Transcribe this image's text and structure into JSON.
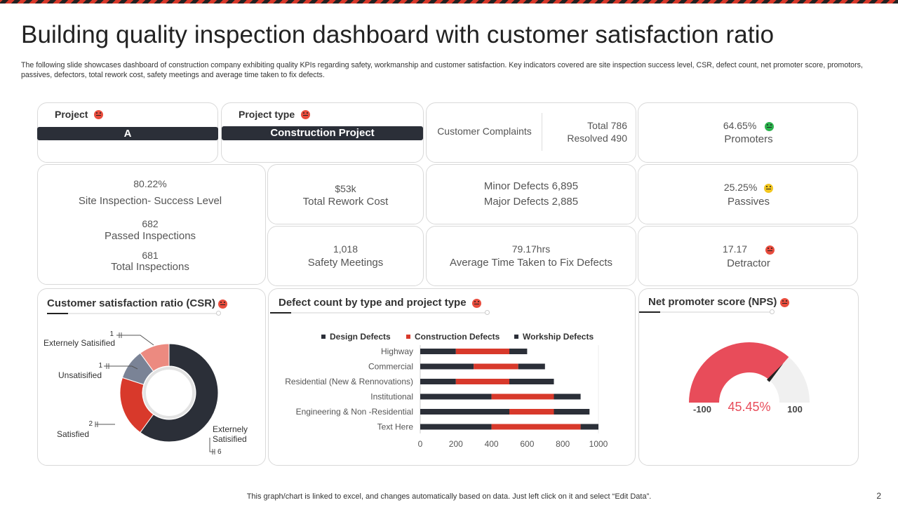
{
  "title": "Building quality inspection dashboard with customer satisfaction ratio",
  "subtitle": "The following slide showcases dashboard of construction company exhibiting quality KPIs regarding safety, workmanship and customer satisfaction. Key indicators covered are site inspection success level, CSR, defect count, net promoter score, promotors, passives, defectors, total rework cost, safety meetings and average time taken to fix defects.",
  "project": {
    "label": "Project",
    "value": "A"
  },
  "project_type": {
    "label": "Project type",
    "value": "Construction Project"
  },
  "complaints": {
    "label": "Customer Complaints",
    "total": "Total 786",
    "resolved": "Resolved 490"
  },
  "promoters": {
    "value": "64.65%",
    "label": "Promoters"
  },
  "site_inspection": {
    "percent": "80.22%",
    "label": "Site Inspection- Success Level",
    "passed_value": "682",
    "passed_label": "Passed Inspections",
    "total_value": "681",
    "total_label": "Total Inspections"
  },
  "rework": {
    "value": "$53k",
    "label": "Total Rework Cost"
  },
  "defects": {
    "minor": "Minor  Defects 6,895",
    "major": "Major  Defects 2,885"
  },
  "passives": {
    "value": "25.25%",
    "label": "Passives"
  },
  "safety": {
    "value": "1,018",
    "label": "Safety Meetings"
  },
  "fix_time": {
    "value": "79.17hrs",
    "label": "Average  Time Taken to Fix Defects"
  },
  "detractor": {
    "value": "17.17",
    "label": "Detractor"
  },
  "csr": {
    "title": "Customer satisfaction ratio (CSR)",
    "labels": {
      "ext_sat_top": "Externely Satisified",
      "unsat": "Unsatisified",
      "sat": "Satisfied",
      "ext_sat_bottom_1": "Externely",
      "ext_sat_bottom_2": "Satisified"
    },
    "values": {
      "ext_top": "1",
      "unsat": "1",
      "sat": "2",
      "ext_bottom": "6"
    }
  },
  "defect_chart_title": "Defect count by type and project type",
  "nps": {
    "title": "Net promoter score (NPS)",
    "min": "-100",
    "max": "100",
    "value": "45.45%"
  },
  "chart_data": [
    {
      "type": "bar",
      "orientation": "horizontal",
      "stacked": true,
      "title": "Defect count by type and project type",
      "categories": [
        "Highway",
        "Commercial",
        "Residential (New & Rennovations)",
        "Institutional",
        "Engineering & Non -Residential",
        "Text Here"
      ],
      "series": [
        {
          "name": "Design Defects",
          "color": "#2b2f38",
          "values": [
            200,
            300,
            200,
            400,
            500,
            400
          ]
        },
        {
          "name": "Construction Defects",
          "color": "#d8392b",
          "values": [
            300,
            250,
            300,
            350,
            250,
            500
          ]
        },
        {
          "name": "Workship Defects",
          "color": "#2b2f38",
          "values": [
            100,
            150,
            250,
            150,
            200,
            100
          ]
        }
      ],
      "xticks": [
        "0",
        "200",
        "400",
        "600",
        "800",
        "1000"
      ],
      "xlim": [
        0,
        1000
      ],
      "legend": "top"
    },
    {
      "type": "pie",
      "donut": true,
      "title": "Customer satisfaction ratio (CSR)",
      "categories": [
        "Externely Satisified",
        "Unsatisified",
        "Satisfied",
        "Externely Satisified"
      ],
      "values": [
        1,
        1,
        2,
        6
      ],
      "colors": [
        "#ec8a80",
        "#7a8396",
        "#d8392b",
        "#2b2f38"
      ]
    },
    {
      "type": "gauge",
      "title": "Net promoter score (NPS)",
      "min": -100,
      "max": 100,
      "value": 45.45,
      "colors": {
        "filled": "#e84c5a",
        "empty": "#f0f0f0",
        "needle": "#222222"
      }
    }
  ]
}
